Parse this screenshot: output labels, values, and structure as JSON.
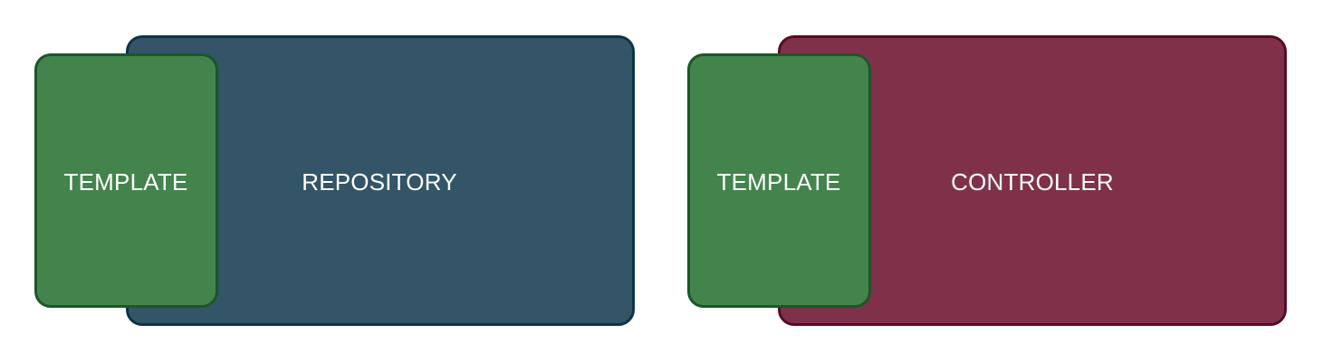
{
  "colors": {
    "repository_fill": "#335567",
    "repository_border": "#0e3349",
    "controller_fill": "#80314a",
    "controller_border": "#5a0a22",
    "template_fill": "#43844c",
    "template_border": "#1c5629",
    "label_text": "#ffffff"
  },
  "groups": [
    {
      "template_label": "TEMPLATE",
      "container_label": "REPOSITORY"
    },
    {
      "template_label": "TEMPLATE",
      "container_label": "CONTROLLER"
    }
  ]
}
